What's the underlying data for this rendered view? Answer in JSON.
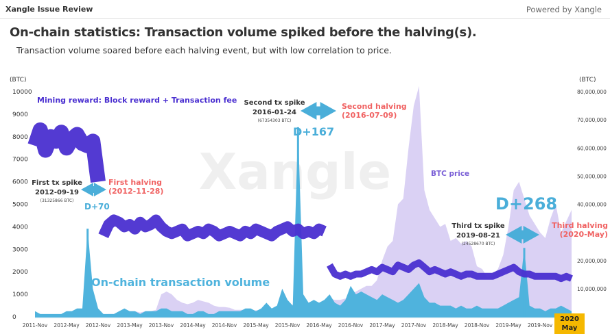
{
  "header": {
    "brand": "Xangle Issue Review",
    "powered_by": "Powered by Xangle"
  },
  "title": "On-chain statistics: Transaction volume spiked before the halving(s).",
  "subtitle": "Transaction volume soared before each halving event, but with low correlation to price.",
  "watermark": "Xangle",
  "chart_data": {
    "type": "area",
    "title": "On-chain statistics: Transaction volume spiked before the halving(s).",
    "x_start": "2011-11",
    "x_interval": "month",
    "x_ticks": [
      "2011-Nov",
      "2012-May",
      "2012-Nov",
      "2013-May",
      "2013-Nov",
      "2014-May",
      "2014-Nov",
      "2015-May",
      "2015-Nov",
      "2016-May",
      "2016-Nov",
      "2017-May",
      "2017-Nov",
      "2018-May",
      "2018-Nov",
      "2019-May",
      "2019-Nov"
    ],
    "x_end_label": {
      "year": "2020",
      "month": "May"
    },
    "y_left": {
      "label": "(BTC)",
      "range": [
        0,
        10000
      ],
      "ticks": [
        "0",
        "1000",
        "2000",
        "3000",
        "4000",
        "5000",
        "6000",
        "7000",
        "8000",
        "9000",
        "10000"
      ]
    },
    "y_right": {
      "label": "(BTC)",
      "range": [
        0,
        80000000
      ],
      "ticks": [
        "10,000,000",
        "20,000,000",
        "40,000,000",
        "50,000,000",
        "60,000,000",
        "70,000,000",
        "80,000,000"
      ]
    },
    "series": [
      {
        "name": "BTC price",
        "axis": "right",
        "unit": "millions (scaled)",
        "color": "#d3c9f2",
        "values": [
          0.5,
          0.5,
          0.5,
          0.5,
          0.5,
          0.5,
          0.5,
          0.5,
          0.5,
          0.6,
          0.7,
          0.7,
          0.7,
          0.8,
          1,
          1,
          1.5,
          2,
          2,
          2,
          1.5,
          2,
          2,
          2.5,
          8,
          9,
          8,
          6,
          5,
          4.5,
          5,
          6,
          5.5,
          5,
          4,
          3.5,
          3.5,
          3.2,
          2.5,
          2.5,
          2.5,
          2.2,
          2.3,
          2.4,
          2.6,
          2.6,
          2.4,
          2.7,
          3.5,
          4.3,
          4,
          4,
          4,
          4.2,
          4.8,
          6,
          6.5,
          6,
          6,
          6.5,
          7.5,
          9,
          10,
          11,
          11,
          13,
          20,
          25,
          27,
          40,
          42,
          60,
          75,
          82,
          45,
          38,
          35,
          32,
          33,
          27,
          28,
          26,
          27,
          25,
          18,
          17,
          14,
          15,
          17,
          22,
          32,
          45,
          48,
          42,
          36,
          33,
          30,
          28,
          35,
          40,
          30,
          34,
          38
        ]
      },
      {
        "name": "On-chain transaction volume",
        "axis": "right",
        "unit": "millions BTC",
        "color": "#4fb3dd",
        "values": [
          2,
          1,
          1,
          1,
          1,
          1,
          2,
          2,
          3,
          3,
          31.3,
          10,
          3,
          1,
          1,
          1,
          2,
          3,
          2,
          2,
          1,
          2,
          2,
          2,
          3,
          3,
          2,
          2,
          2,
          1,
          1,
          2,
          2,
          1,
          1,
          2,
          2,
          2,
          2,
          2,
          3,
          3,
          2,
          3,
          5,
          3,
          4,
          10,
          6,
          4,
          67.4,
          8,
          5,
          6,
          5,
          6,
          8,
          5,
          4,
          6,
          11,
          8,
          9,
          8,
          7,
          6,
          8,
          7,
          6,
          5,
          6,
          8,
          10,
          12,
          7,
          5,
          5,
          4,
          4,
          4,
          3,
          4,
          3,
          3,
          4,
          3,
          3,
          3,
          3,
          4,
          5,
          6,
          7,
          24.5,
          4,
          3,
          3,
          2,
          3,
          3,
          4,
          3,
          2
        ]
      },
      {
        "name": "Mining reward: Block reward + Transaction fee",
        "axis": "left",
        "unit": "BTC",
        "color": "#4a2fd0",
        "values": [
          7600,
          8300,
          7400,
          8000,
          7800,
          8200,
          7500,
          7900,
          8100,
          7700,
          7600,
          7800,
          6000,
          3600,
          4100,
          4300,
          4200,
          4000,
          4100,
          3900,
          4200,
          4000,
          4100,
          4300,
          4000,
          3800,
          3700,
          3800,
          3900,
          3600,
          3700,
          3800,
          3700,
          3900,
          3800,
          3600,
          3700,
          3800,
          3700,
          3600,
          3800,
          3700,
          3900,
          3800,
          3700,
          3600,
          3800,
          3900,
          4000,
          3800,
          3900,
          3700,
          3800,
          3700,
          3900,
          3800,
          2300,
          1900,
          1800,
          1900,
          1800,
          1900,
          1900,
          2000,
          2100,
          2000,
          2200,
          2100,
          2000,
          2300,
          2200,
          2100,
          2300,
          2400,
          2200,
          2000,
          2100,
          2000,
          1900,
          2000,
          1900,
          1800,
          1900,
          1900,
          1800,
          1800,
          1800,
          1800,
          1900,
          2000,
          2100,
          2200,
          2000,
          1900,
          1900,
          1800,
          1800,
          1800,
          1800,
          1800,
          1700,
          1800,
          1700
        ]
      }
    ],
    "annotations": {
      "mining_label": "Mining reward: Block reward + Transaction fee",
      "price_label": "BTC price",
      "volume_label": "On-chain transaction volume",
      "spikes": [
        {
          "title": "First tx spike",
          "date": "2012-09-19",
          "amount": "(31325866 BTC)",
          "halving_title": "First halving",
          "halving_date": "(2012-11-28)",
          "gap": "D+70"
        },
        {
          "title": "Second tx spike",
          "date": "2016-01-24",
          "amount": "(67354303 BTC)",
          "halving_title": "Second halving",
          "halving_date": "(2016-07-09)",
          "gap": "D+167"
        },
        {
          "title": "Third tx spike",
          "date": "2019-08-21",
          "amount": "(24528670 BTC)",
          "halving_title": "Third halving",
          "halving_date": "(2020-May)",
          "gap": "D+268"
        }
      ]
    }
  }
}
